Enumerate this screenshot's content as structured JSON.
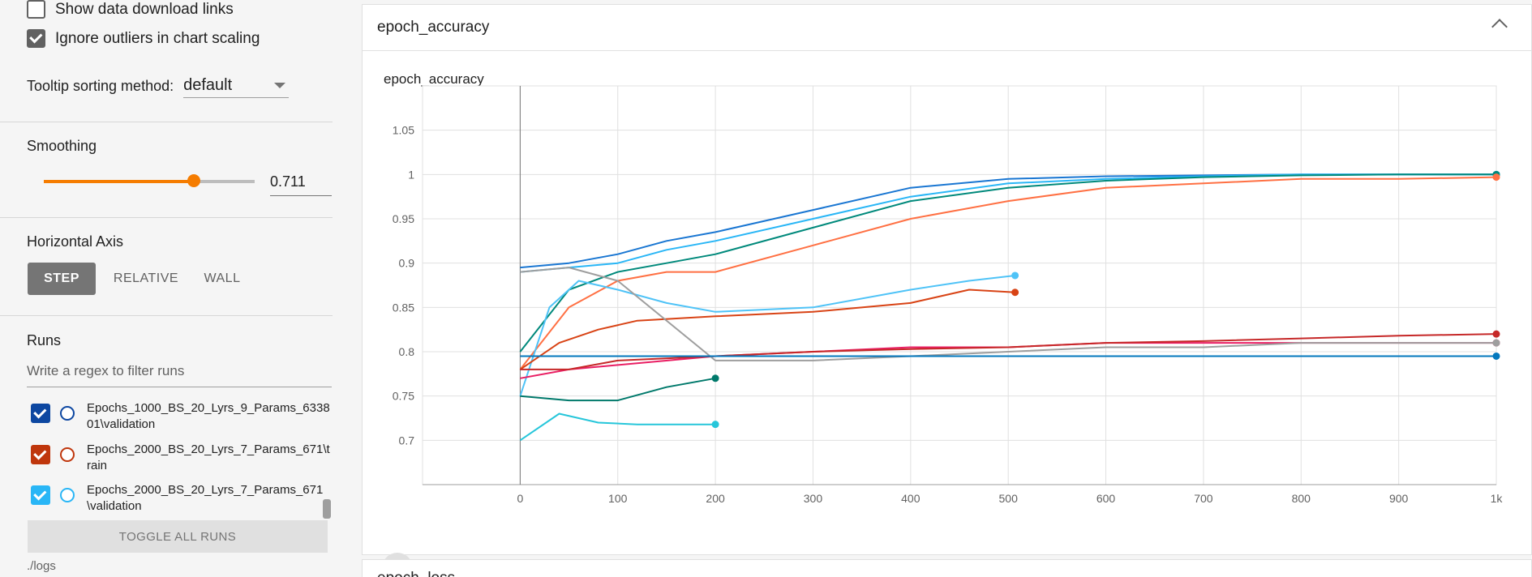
{
  "sidebar": {
    "show_download_links": {
      "label": "Show data download links",
      "checked": false
    },
    "ignore_outliers": {
      "label": "Ignore outliers in chart scaling",
      "checked": true
    },
    "tooltip": {
      "label": "Tooltip sorting method:",
      "value": "default"
    },
    "smoothing": {
      "title": "Smoothing",
      "value": "0.711",
      "fraction": 0.711
    },
    "horizontal_axis": {
      "title": "Horizontal Axis",
      "options": [
        "STEP",
        "RELATIVE",
        "WALL"
      ],
      "selected": "STEP"
    },
    "runs": {
      "title": "Runs",
      "filter_placeholder": "Write a regex to filter runs",
      "items": [
        {
          "name": "Epochs_1000_BS_20_Lyrs_9_Params_633801\\validation",
          "color": "#0d47a1",
          "checked": true
        },
        {
          "name": "Epochs_2000_BS_20_Lyrs_7_Params_671\\train",
          "color": "#bf360c",
          "checked": true
        },
        {
          "name": "Epochs_2000_BS_20_Lyrs_7_Params_671\\validation",
          "color": "#29b6f6",
          "checked": true
        }
      ],
      "toggle_all": "TOGGLE ALL RUNS",
      "logdir": "./logs"
    }
  },
  "main": {
    "card_title": "epoch_accuracy",
    "next_card_title": "epoch_loss"
  },
  "chart_data": {
    "type": "line",
    "title": "epoch_accuracy",
    "xlabel": "",
    "ylabel": "",
    "x_ticks": [
      "0",
      "100",
      "200",
      "300",
      "400",
      "500",
      "600",
      "700",
      "800",
      "900",
      "1k"
    ],
    "y_ticks": [
      "0.7",
      "0.75",
      "0.8",
      "0.85",
      "0.9",
      "0.95",
      "1",
      "1.05"
    ],
    "xlim": [
      -100,
      1000
    ],
    "ylim": [
      0.65,
      1.1
    ],
    "grid": true,
    "series": [
      {
        "color": "#1976d2",
        "x": [
          0,
          50,
          100,
          150,
          200,
          300,
          400,
          500,
          600,
          700,
          800,
          900,
          1000
        ],
        "values": [
          0.895,
          0.9,
          0.91,
          0.925,
          0.935,
          0.96,
          0.985,
          0.995,
          0.998,
          0.999,
          1.0,
          1.0,
          1.0
        ]
      },
      {
        "color": "#29b6f6",
        "x": [
          0,
          50,
          100,
          150,
          200,
          300,
          400,
          500,
          600,
          700,
          800,
          900,
          1000
        ],
        "values": [
          0.89,
          0.895,
          0.9,
          0.915,
          0.925,
          0.95,
          0.975,
          0.99,
          0.995,
          0.998,
          1.0,
          1.0,
          1.0
        ]
      },
      {
        "color": "#00897b",
        "x": [
          0,
          50,
          100,
          150,
          200,
          300,
          400,
          500,
          600,
          700,
          800,
          900,
          1000
        ],
        "values": [
          0.8,
          0.87,
          0.89,
          0.9,
          0.91,
          0.94,
          0.97,
          0.985,
          0.993,
          0.997,
          0.999,
          1.0,
          1.0
        ]
      },
      {
        "color": "#ff7043",
        "x": [
          0,
          50,
          100,
          150,
          200,
          300,
          400,
          500,
          600,
          700,
          800,
          900,
          1000
        ],
        "values": [
          0.78,
          0.85,
          0.88,
          0.89,
          0.89,
          0.92,
          0.95,
          0.97,
          0.985,
          0.99,
          0.995,
          0.995,
          0.997
        ]
      },
      {
        "color": "#4fc3f7",
        "x": [
          0,
          30,
          60,
          100,
          150,
          200,
          300,
          400,
          460,
          507
        ],
        "values": [
          0.75,
          0.85,
          0.88,
          0.87,
          0.855,
          0.845,
          0.85,
          0.87,
          0.88,
          0.886
        ]
      },
      {
        "color": "#d84315",
        "x": [
          0,
          40,
          80,
          120,
          200,
          300,
          400,
          460,
          507
        ],
        "values": [
          0.78,
          0.81,
          0.825,
          0.835,
          0.84,
          0.845,
          0.855,
          0.87,
          0.867
        ]
      },
      {
        "color": "#e91e63",
        "x": [
          0,
          50,
          100,
          200,
          300,
          400,
          500,
          600,
          700,
          800,
          900,
          1000
        ],
        "values": [
          0.77,
          0.78,
          0.785,
          0.795,
          0.8,
          0.805,
          0.805,
          0.81,
          0.81,
          0.81,
          0.81,
          0.81
        ]
      },
      {
        "color": "#c62828",
        "x": [
          0,
          50,
          100,
          200,
          300,
          400,
          500,
          600,
          700,
          800,
          900,
          1000
        ],
        "values": [
          0.78,
          0.78,
          0.79,
          0.795,
          0.8,
          0.803,
          0.805,
          0.81,
          0.812,
          0.815,
          0.818,
          0.82
        ]
      },
      {
        "color": "#9e9e9e",
        "x": [
          0,
          50,
          100,
          200,
          300,
          400,
          500,
          600,
          700,
          800,
          900,
          1000
        ],
        "values": [
          0.89,
          0.895,
          0.88,
          0.79,
          0.79,
          0.795,
          0.8,
          0.805,
          0.805,
          0.81,
          0.81,
          0.81
        ]
      },
      {
        "color": "#0277bd",
        "x": [
          0,
          50,
          100,
          200,
          300,
          400,
          500,
          600,
          700,
          800,
          900,
          1000
        ],
        "values": [
          0.795,
          0.795,
          0.795,
          0.795,
          0.795,
          0.795,
          0.795,
          0.795,
          0.795,
          0.795,
          0.795,
          0.795
        ]
      },
      {
        "color": "#26c6da",
        "x": [
          0,
          40,
          80,
          120,
          200
        ],
        "values": [
          0.7,
          0.73,
          0.72,
          0.718,
          0.718
        ]
      },
      {
        "color": "#00796b",
        "x": [
          0,
          50,
          100,
          150,
          200
        ],
        "values": [
          0.75,
          0.745,
          0.745,
          0.76,
          0.77
        ]
      }
    ]
  }
}
